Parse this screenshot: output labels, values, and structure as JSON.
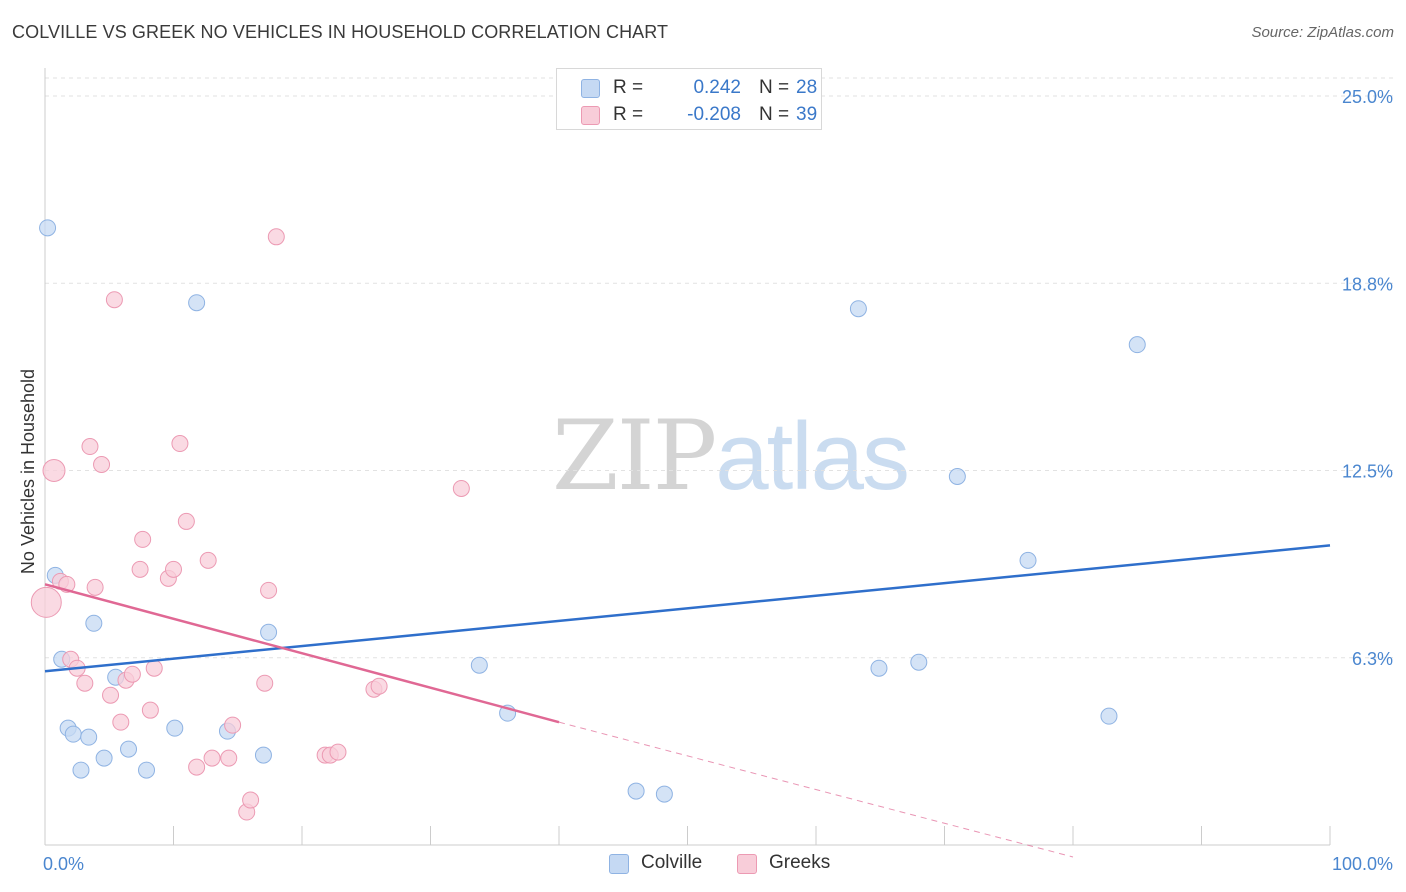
{
  "title": "COLVILLE VS GREEK NO VEHICLES IN HOUSEHOLD CORRELATION CHART",
  "source": "Source: ZipAtlas.com",
  "watermark": {
    "zip": "ZIP",
    "atlas": "atlas"
  },
  "legend": {
    "rows": [
      {
        "r_label": "R =",
        "r_value": "0.242",
        "n_label": "N =",
        "n_value": "28"
      },
      {
        "r_label": "R =",
        "r_value": "-0.208",
        "n_label": "N =",
        "n_value": "39"
      }
    ]
  },
  "bottom_legend": [
    {
      "label": "Colville"
    },
    {
      "label": "Greeks"
    }
  ],
  "colors": {
    "blue_fill": "#c5d9f3",
    "blue_stroke": "#8fb3e3",
    "blue_line": "#2f6fcb",
    "pink_fill": "#f8cdd9",
    "pink_stroke": "#ec9ab3",
    "pink_line": "#e06894",
    "axis_label": "#4a86cf",
    "grid": "#e2e2e2"
  },
  "chart_data": {
    "type": "scatter",
    "title": "COLVILLE VS GREEK NO VEHICLES IN HOUSEHOLD CORRELATION CHART",
    "xlabel": "",
    "ylabel": "No Vehicles in Household",
    "xlim": [
      0,
      100
    ],
    "ylim": [
      0,
      25.0
    ],
    "x_tick_labels": [
      {
        "value": 0,
        "label": "0.0%"
      },
      {
        "value": 100,
        "label": "100.0%"
      }
    ],
    "y_tick_labels": [
      {
        "value": 6.25,
        "label": "6.3%"
      },
      {
        "value": 12.5,
        "label": "12.5%"
      },
      {
        "value": 18.75,
        "label": "18.8%"
      },
      {
        "value": 25.0,
        "label": "25.0%"
      }
    ],
    "series": [
      {
        "name": "Colville",
        "r": 0.242,
        "n": 28,
        "points": [
          {
            "x": 0.2,
            "y": 20.6
          },
          {
            "x": 0.8,
            "y": 9.0
          },
          {
            "x": 1.3,
            "y": 6.2
          },
          {
            "x": 1.8,
            "y": 3.9
          },
          {
            "x": 2.2,
            "y": 3.7
          },
          {
            "x": 2.8,
            "y": 2.5
          },
          {
            "x": 3.4,
            "y": 3.6
          },
          {
            "x": 3.8,
            "y": 7.4
          },
          {
            "x": 4.6,
            "y": 2.9
          },
          {
            "x": 5.5,
            "y": 5.6
          },
          {
            "x": 6.5,
            "y": 3.2
          },
          {
            "x": 7.9,
            "y": 2.5
          },
          {
            "x": 10.1,
            "y": 3.9
          },
          {
            "x": 11.8,
            "y": 18.1
          },
          {
            "x": 14.2,
            "y": 3.8
          },
          {
            "x": 17.0,
            "y": 3.0
          },
          {
            "x": 17.4,
            "y": 7.1
          },
          {
            "x": 33.8,
            "y": 6.0
          },
          {
            "x": 36.0,
            "y": 4.4
          },
          {
            "x": 46.0,
            "y": 1.8
          },
          {
            "x": 48.2,
            "y": 1.7
          },
          {
            "x": 63.3,
            "y": 17.9
          },
          {
            "x": 64.9,
            "y": 5.9
          },
          {
            "x": 68.0,
            "y": 6.1
          },
          {
            "x": 71.0,
            "y": 12.3
          },
          {
            "x": 76.5,
            "y": 9.5
          },
          {
            "x": 82.8,
            "y": 4.3
          },
          {
            "x": 85.0,
            "y": 16.7
          }
        ],
        "trend": {
          "x0": 0,
          "y0": 5.8,
          "x1": 100,
          "y1": 10.0
        }
      },
      {
        "name": "Greeks",
        "r": -0.208,
        "n": 39,
        "points": [
          {
            "x": 0.1,
            "y": 8.1
          },
          {
            "x": 0.7,
            "y": 12.5
          },
          {
            "x": 1.2,
            "y": 8.8
          },
          {
            "x": 1.7,
            "y": 8.7
          },
          {
            "x": 2.0,
            "y": 6.2
          },
          {
            "x": 2.5,
            "y": 5.9
          },
          {
            "x": 3.1,
            "y": 5.4
          },
          {
            "x": 3.5,
            "y": 13.3
          },
          {
            "x": 3.9,
            "y": 8.6
          },
          {
            "x": 4.4,
            "y": 12.7
          },
          {
            "x": 5.1,
            "y": 5.0
          },
          {
            "x": 5.4,
            "y": 18.2
          },
          {
            "x": 5.9,
            "y": 4.1
          },
          {
            "x": 6.3,
            "y": 5.5
          },
          {
            "x": 6.8,
            "y": 5.7
          },
          {
            "x": 7.4,
            "y": 9.2
          },
          {
            "x": 7.6,
            "y": 10.2
          },
          {
            "x": 8.2,
            "y": 4.5
          },
          {
            "x": 8.5,
            "y": 5.9
          },
          {
            "x": 9.6,
            "y": 8.9
          },
          {
            "x": 10.0,
            "y": 9.2
          },
          {
            "x": 10.5,
            "y": 13.4
          },
          {
            "x": 11.0,
            "y": 10.8
          },
          {
            "x": 11.8,
            "y": 2.6
          },
          {
            "x": 12.7,
            "y": 9.5
          },
          {
            "x": 13.0,
            "y": 2.9
          },
          {
            "x": 14.3,
            "y": 2.9
          },
          {
            "x": 14.6,
            "y": 4.0
          },
          {
            "x": 15.7,
            "y": 1.1
          },
          {
            "x": 16.0,
            "y": 1.5
          },
          {
            "x": 17.1,
            "y": 5.4
          },
          {
            "x": 17.4,
            "y": 8.5
          },
          {
            "x": 18.0,
            "y": 20.3
          },
          {
            "x": 21.8,
            "y": 3.0
          },
          {
            "x": 22.2,
            "y": 3.0
          },
          {
            "x": 22.8,
            "y": 3.1
          },
          {
            "x": 25.6,
            "y": 5.2
          },
          {
            "x": 26.0,
            "y": 5.3
          },
          {
            "x": 32.4,
            "y": 11.9
          }
        ],
        "trend": {
          "x0": 0,
          "y0": 8.7,
          "x1": 40,
          "y1": 4.1
        },
        "trend_dashed": {
          "x0": 40,
          "y0": 4.1,
          "x1": 80,
          "y1": -0.4
        }
      }
    ]
  }
}
